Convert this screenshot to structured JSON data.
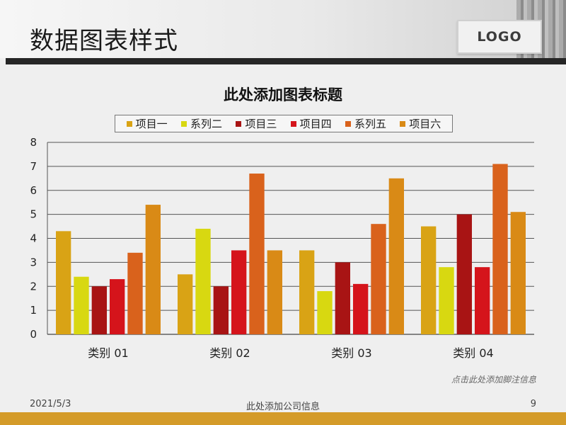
{
  "slide": {
    "title": "数据图表样式",
    "logo_text": "LOGO",
    "footnote": "点击此处添加脚注信息",
    "footer": {
      "date": "2021/5/3",
      "company": "此处添加公司信息",
      "page": "9"
    }
  },
  "chart_data": {
    "type": "bar",
    "title": "此处添加图表标题",
    "xlabel": "",
    "ylabel": "",
    "categories": [
      "类别 01",
      "类别 02",
      "类别 03",
      "类别 04"
    ],
    "ylim": [
      0,
      8
    ],
    "yticks": [
      "0",
      "1",
      "2",
      "3",
      "4",
      "5",
      "6",
      "7",
      "8"
    ],
    "grid": true,
    "legend_position": "top",
    "series": [
      {
        "name": "项目一",
        "color": "#D9A315",
        "values": [
          4.3,
          2.5,
          3.5,
          4.5
        ]
      },
      {
        "name": "系列二",
        "color": "#D8D811",
        "values": [
          2.4,
          4.4,
          1.8,
          2.8
        ]
      },
      {
        "name": "项目三",
        "color": "#A81414",
        "values": [
          2.0,
          2.0,
          3.0,
          5.0
        ]
      },
      {
        "name": "项目四",
        "color": "#D5141B",
        "values": [
          2.3,
          3.5,
          2.1,
          2.8
        ]
      },
      {
        "name": "系列五",
        "color": "#D9621C",
        "values": [
          3.4,
          6.7,
          4.6,
          7.1
        ]
      },
      {
        "name": "项目六",
        "color": "#D98A16",
        "values": [
          5.4,
          3.5,
          6.5,
          5.1
        ]
      }
    ]
  }
}
